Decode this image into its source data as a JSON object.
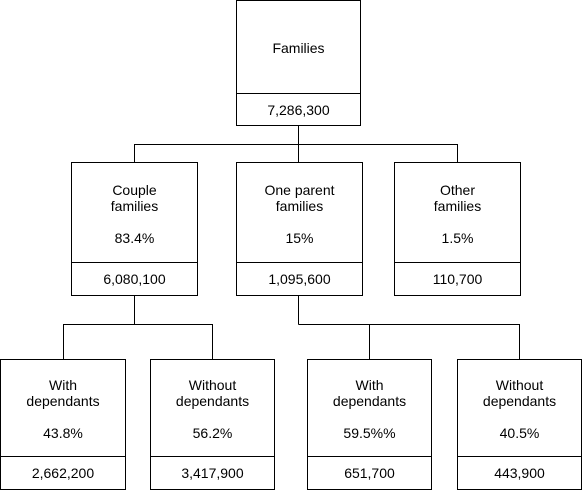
{
  "root": {
    "label_lines": [
      "Families"
    ],
    "value": "7,286,300"
  },
  "level1": [
    {
      "id": "couple",
      "label_lines": [
        "Couple",
        "families"
      ],
      "pct": "83.4%",
      "value": "6,080,100"
    },
    {
      "id": "one-parent",
      "label_lines": [
        "One parent",
        "families"
      ],
      "pct": "15%",
      "value": "1,095,600"
    },
    {
      "id": "other",
      "label_lines": [
        "Other",
        "families"
      ],
      "pct": "1.5%",
      "value": "110,700"
    }
  ],
  "level2": [
    {
      "id": "couple-with",
      "label_lines": [
        "With",
        "dependants"
      ],
      "pct": "43.8%",
      "value": "2,662,200"
    },
    {
      "id": "couple-without",
      "label_lines": [
        "Without",
        "dependants"
      ],
      "pct": "56.2%",
      "value": "3,417,900"
    },
    {
      "id": "one-parent-with",
      "label_lines": [
        "With",
        "dependants"
      ],
      "pct": "59.5%%",
      "value": "651,700"
    },
    {
      "id": "one-parent-without",
      "label_lines": [
        "Without",
        "dependants"
      ],
      "pct": "40.5%",
      "value": "443,900"
    }
  ]
}
